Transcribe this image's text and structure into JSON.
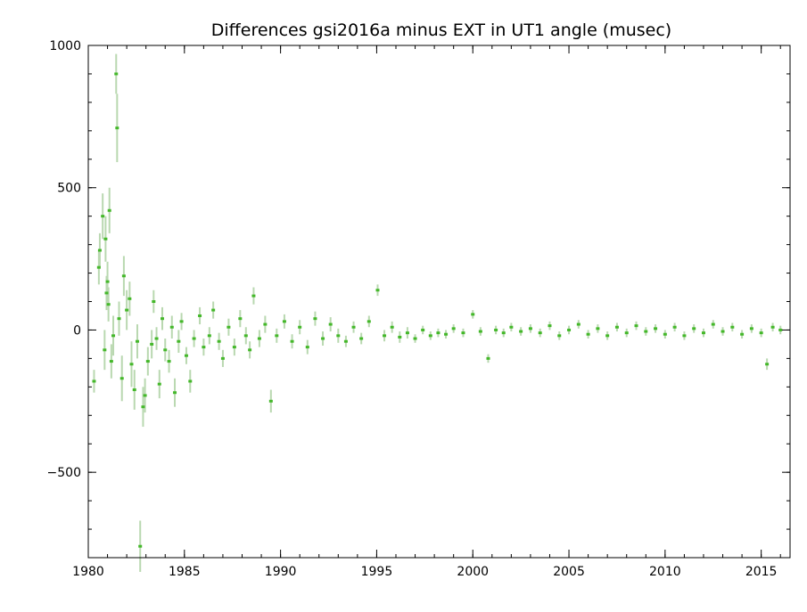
{
  "chart_data": {
    "type": "scatter",
    "title": "Differences gsi2016a minus EXT in UT1 angle   (musec)",
    "xlabel": "",
    "ylabel": "",
    "xlim": [
      1980,
      2016.5
    ],
    "ylim": [
      -800,
      1000
    ],
    "x_ticks": [
      1980,
      1985,
      1990,
      1995,
      2000,
      2005,
      2010,
      2015
    ],
    "y_ticks": [
      -500,
      0,
      500,
      1000
    ],
    "x_tick_labels": [
      "1980",
      "1985",
      "1990",
      "1995",
      "2000",
      "2005",
      "2010",
      "2015"
    ],
    "y_tick_labels": [
      "−500",
      "0",
      "500",
      "1000"
    ],
    "grid": false,
    "legend": "none",
    "colors": {
      "points": "#44b82a",
      "error_bars": "#b9d8b0",
      "axes": "#000000"
    },
    "series": [
      {
        "values": [
          [
            1980.3,
            -180,
            40
          ],
          [
            1980.55,
            220,
            60
          ],
          [
            1980.6,
            280,
            60
          ],
          [
            1980.75,
            400,
            80
          ],
          [
            1980.85,
            -70,
            70
          ],
          [
            1980.9,
            320,
            80
          ],
          [
            1980.95,
            130,
            60
          ],
          [
            1981.0,
            170,
            70
          ],
          [
            1981.05,
            90,
            60
          ],
          [
            1981.1,
            420,
            80
          ],
          [
            1981.2,
            -110,
            60
          ],
          [
            1981.3,
            -20,
            70
          ],
          [
            1981.45,
            900,
            70
          ],
          [
            1981.5,
            710,
            120
          ],
          [
            1981.6,
            40,
            60
          ],
          [
            1981.75,
            -170,
            80
          ],
          [
            1981.85,
            190,
            70
          ],
          [
            1982.0,
            70,
            70
          ],
          [
            1982.15,
            110,
            60
          ],
          [
            1982.25,
            -120,
            80
          ],
          [
            1982.4,
            -210,
            70
          ],
          [
            1982.55,
            -40,
            60
          ],
          [
            1982.7,
            -760,
            90
          ],
          [
            1982.85,
            -270,
            70
          ],
          [
            1982.95,
            -230,
            60
          ],
          [
            1983.1,
            -110,
            50
          ],
          [
            1983.3,
            -50,
            50
          ],
          [
            1983.4,
            100,
            40
          ],
          [
            1983.55,
            -30,
            40
          ],
          [
            1983.7,
            -190,
            50
          ],
          [
            1983.85,
            40,
            40
          ],
          [
            1984.0,
            -70,
            40
          ],
          [
            1984.2,
            -110,
            40
          ],
          [
            1984.35,
            10,
            40
          ],
          [
            1984.5,
            -220,
            50
          ],
          [
            1984.7,
            -40,
            40
          ],
          [
            1984.85,
            30,
            30
          ],
          [
            1985.1,
            -90,
            30
          ],
          [
            1985.3,
            -180,
            40
          ],
          [
            1985.5,
            -30,
            30
          ],
          [
            1985.8,
            50,
            30
          ],
          [
            1986.0,
            -60,
            30
          ],
          [
            1986.3,
            -20,
            30
          ],
          [
            1986.5,
            70,
            30
          ],
          [
            1986.8,
            -40,
            30
          ],
          [
            1987.0,
            -100,
            30
          ],
          [
            1987.3,
            10,
            30
          ],
          [
            1987.6,
            -60,
            30
          ],
          [
            1987.9,
            40,
            30
          ],
          [
            1988.2,
            -20,
            30
          ],
          [
            1988.4,
            -70,
            30
          ],
          [
            1988.6,
            120,
            30
          ],
          [
            1988.9,
            -30,
            30
          ],
          [
            1989.2,
            20,
            30
          ],
          [
            1989.5,
            -250,
            40
          ],
          [
            1989.8,
            -20,
            25
          ],
          [
            1990.2,
            30,
            25
          ],
          [
            1990.6,
            -40,
            25
          ],
          [
            1991.0,
            10,
            25
          ],
          [
            1991.4,
            -60,
            25
          ],
          [
            1991.8,
            40,
            25
          ],
          [
            1992.2,
            -30,
            25
          ],
          [
            1992.6,
            20,
            25
          ],
          [
            1993.0,
            -20,
            25
          ],
          [
            1993.4,
            -40,
            20
          ],
          [
            1993.8,
            10,
            20
          ],
          [
            1994.2,
            -30,
            20
          ],
          [
            1994.6,
            30,
            20
          ],
          [
            1995.05,
            140,
            20
          ],
          [
            1995.4,
            -20,
            20
          ],
          [
            1995.8,
            10,
            20
          ],
          [
            1996.2,
            -25,
            20
          ],
          [
            1996.6,
            -10,
            20
          ],
          [
            1997.0,
            -30,
            15
          ],
          [
            1997.4,
            0,
            15
          ],
          [
            1997.8,
            -20,
            15
          ],
          [
            1998.2,
            -10,
            15
          ],
          [
            1998.6,
            -15,
            15
          ],
          [
            1999.0,
            5,
            15
          ],
          [
            1999.5,
            -10,
            15
          ],
          [
            2000.0,
            55,
            15
          ],
          [
            2000.4,
            -5,
            15
          ],
          [
            2000.8,
            -100,
            15
          ],
          [
            2001.2,
            0,
            15
          ],
          [
            2001.6,
            -10,
            15
          ],
          [
            2002.0,
            10,
            15
          ],
          [
            2002.5,
            -5,
            15
          ],
          [
            2003.0,
            5,
            15
          ],
          [
            2003.5,
            -10,
            15
          ],
          [
            2004.0,
            15,
            15
          ],
          [
            2004.5,
            -20,
            15
          ],
          [
            2005.0,
            0,
            15
          ],
          [
            2005.5,
            20,
            15
          ],
          [
            2006.0,
            -15,
            15
          ],
          [
            2006.5,
            5,
            15
          ],
          [
            2007.0,
            -20,
            15
          ],
          [
            2007.5,
            10,
            15
          ],
          [
            2008.0,
            -10,
            15
          ],
          [
            2008.5,
            15,
            15
          ],
          [
            2009.0,
            -5,
            15
          ],
          [
            2009.5,
            5,
            15
          ],
          [
            2010.0,
            -15,
            15
          ],
          [
            2010.5,
            10,
            15
          ],
          [
            2011.0,
            -20,
            15
          ],
          [
            2011.5,
            5,
            15
          ],
          [
            2012.0,
            -10,
            15
          ],
          [
            2012.5,
            20,
            15
          ],
          [
            2013.0,
            -5,
            15
          ],
          [
            2013.5,
            10,
            15
          ],
          [
            2014.0,
            -15,
            15
          ],
          [
            2014.5,
            5,
            15
          ],
          [
            2015.0,
            -10,
            15
          ],
          [
            2015.3,
            -120,
            20
          ],
          [
            2015.6,
            10,
            15
          ],
          [
            2016.0,
            0,
            15
          ]
        ]
      }
    ]
  }
}
